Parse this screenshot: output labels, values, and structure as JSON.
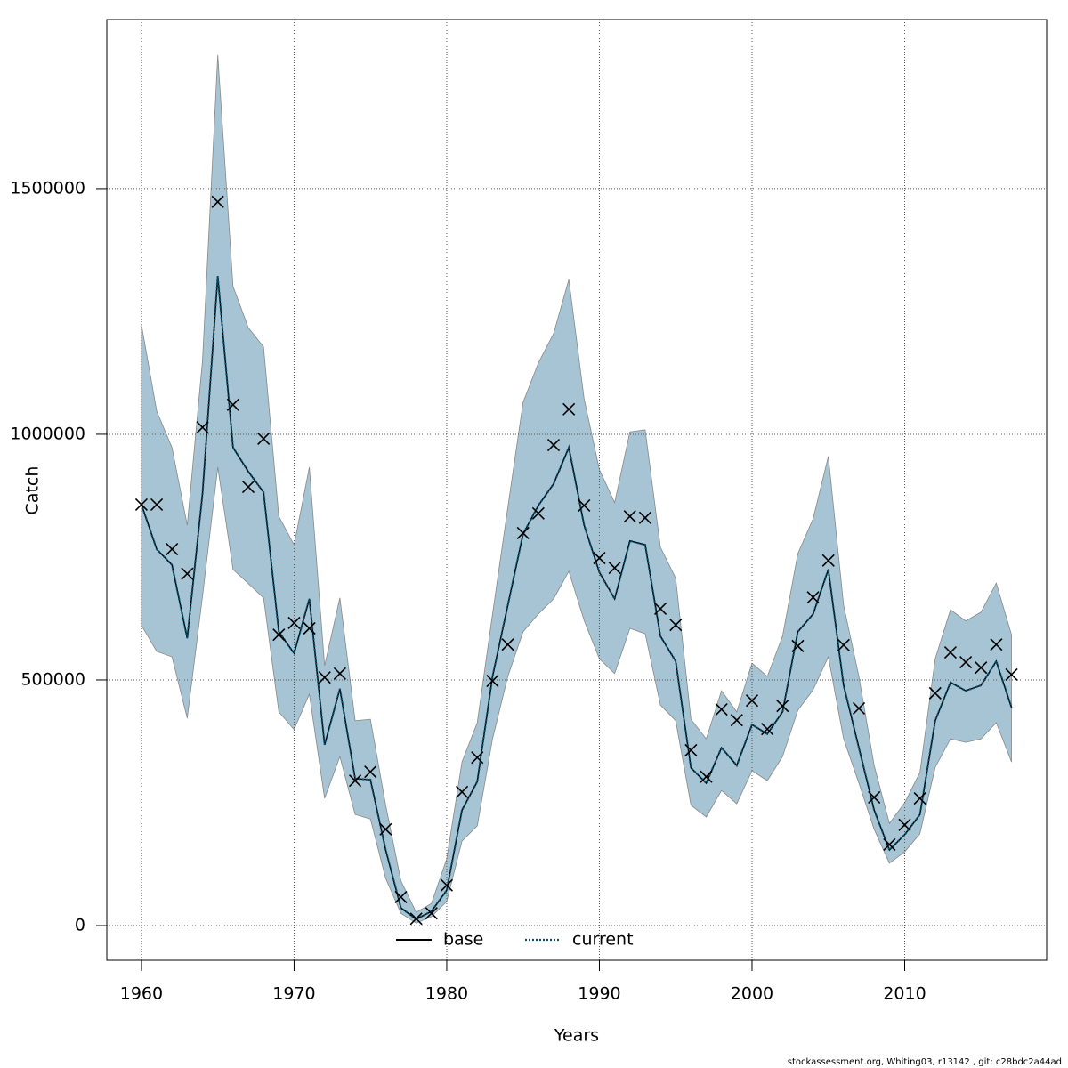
{
  "chart_data": {
    "type": "line",
    "xlabel": "Years",
    "ylabel": "Catch",
    "footer": "stockassessment.org, Whiting03, r13142 , git: c28bdc2a44ad",
    "x": [
      1960,
      1961,
      1962,
      1963,
      1964,
      1965,
      1966,
      1967,
      1968,
      1969,
      1970,
      1971,
      1972,
      1973,
      1974,
      1975,
      1976,
      1977,
      1978,
      1979,
      1980,
      1981,
      1982,
      1983,
      1984,
      1985,
      1986,
      1987,
      1988,
      1989,
      1990,
      1991,
      1992,
      1993,
      1994,
      1995,
      1996,
      1997,
      1998,
      1999,
      2000,
      2001,
      2002,
      2003,
      2004,
      2005,
      2006,
      2007,
      2008,
      2009,
      2010,
      2011,
      2012,
      2013,
      2014,
      2015,
      2016,
      2017
    ],
    "xlim": [
      1957.73,
      2019.3
    ],
    "xticks": [
      1960,
      1970,
      1980,
      1990,
      2000,
      2010
    ],
    "ylim": [
      -70650,
      1844000
    ],
    "yticks": [
      0,
      500000,
      1000000,
      1500000
    ],
    "grid": true,
    "legend": "bottom",
    "band_color": "#a6c4d4",
    "upper": [
      1223000,
      1047000,
      973000,
      815000,
      1150000,
      1772000,
      1301000,
      1217000,
      1178000,
      833000,
      775000,
      933000,
      529000,
      667000,
      417000,
      420000,
      245000,
      91000,
      27000,
      45000,
      136000,
      333000,
      413000,
      634000,
      851000,
      1065000,
      1145000,
      1205000,
      1315000,
      1072000,
      928000,
      861000,
      1005000,
      1009000,
      770000,
      707000,
      420000,
      380000,
      478000,
      435000,
      534000,
      507000,
      589000,
      757000,
      828000,
      955000,
      652000,
      507000,
      326000,
      208000,
      250000,
      312000,
      543000,
      643000,
      620000,
      638000,
      697000,
      592000
    ],
    "lower": [
      611000,
      558000,
      547000,
      422000,
      670000,
      933000,
      725000,
      696000,
      667000,
      435000,
      399000,
      471000,
      259000,
      344000,
      226000,
      217000,
      96000,
      25000,
      5000,
      18000,
      49000,
      172000,
      203000,
      380000,
      507000,
      598000,
      634000,
      665000,
      721000,
      621000,
      543000,
      513000,
      605000,
      594000,
      449000,
      417000,
      245000,
      221000,
      275000,
      248000,
      315000,
      295000,
      344000,
      438000,
      480000,
      547000,
      380000,
      290000,
      196000,
      127000,
      150000,
      187000,
      322000,
      380000,
      373000,
      380000,
      413000,
      333000
    ],
    "observed": {
      "color": "#000000",
      "values": [
        857000,
        857000,
        766000,
        716000,
        1014000,
        1473000,
        1060000,
        893000,
        991000,
        592000,
        616000,
        605000,
        505000,
        513000,
        295000,
        313000,
        196000,
        58000,
        14000,
        25000,
        82000,
        272000,
        342000,
        498000,
        572000,
        799000,
        839000,
        978000,
        1051000,
        855000,
        748000,
        728000,
        833000,
        830000,
        645000,
        612000,
        357000,
        303000,
        440000,
        418000,
        458000,
        400000,
        447000,
        569000,
        668000,
        743000,
        571000,
        442000,
        261000,
        165000,
        205000,
        259000,
        473000,
        556000,
        536000,
        525000,
        572000,
        511000
      ]
    },
    "series": [
      {
        "name": "base",
        "color": "#000000",
        "dash": "solid",
        "values": [
          857000,
          766000,
          734000,
          585000,
          879000,
          1322000,
          973000,
          924000,
          882000,
          598000,
          554000,
          665000,
          368000,
          482000,
          299000,
          297000,
          154000,
          36000,
          13000,
          29000,
          72000,
          235000,
          293000,
          507000,
          652000,
          797000,
          855000,
          899000,
          973000,
          815000,
          719000,
          665000,
          783000,
          775000,
          589000,
          538000,
          321000,
          290000,
          362000,
          326000,
          409000,
          390000,
          435000,
          598000,
          634000,
          725000,
          489000,
          362000,
          235000,
          154000,
          185000,
          226000,
          417000,
          495000,
          478000,
          489000,
          538000,
          444000
        ]
      },
      {
        "name": "current",
        "color": "#00506e",
        "dash": "dotted",
        "values": [
          857000,
          766000,
          734000,
          585000,
          879000,
          1322000,
          973000,
          924000,
          882000,
          598000,
          554000,
          665000,
          368000,
          482000,
          299000,
          297000,
          154000,
          36000,
          13000,
          29000,
          72000,
          235000,
          293000,
          507000,
          652000,
          797000,
          855000,
          899000,
          973000,
          815000,
          719000,
          665000,
          783000,
          775000,
          589000,
          538000,
          321000,
          290000,
          362000,
          326000,
          409000,
          390000,
          435000,
          598000,
          634000,
          725000,
          489000,
          362000,
          235000,
          154000,
          185000,
          226000,
          417000,
          495000,
          478000,
          489000,
          538000,
          444000
        ]
      }
    ]
  }
}
